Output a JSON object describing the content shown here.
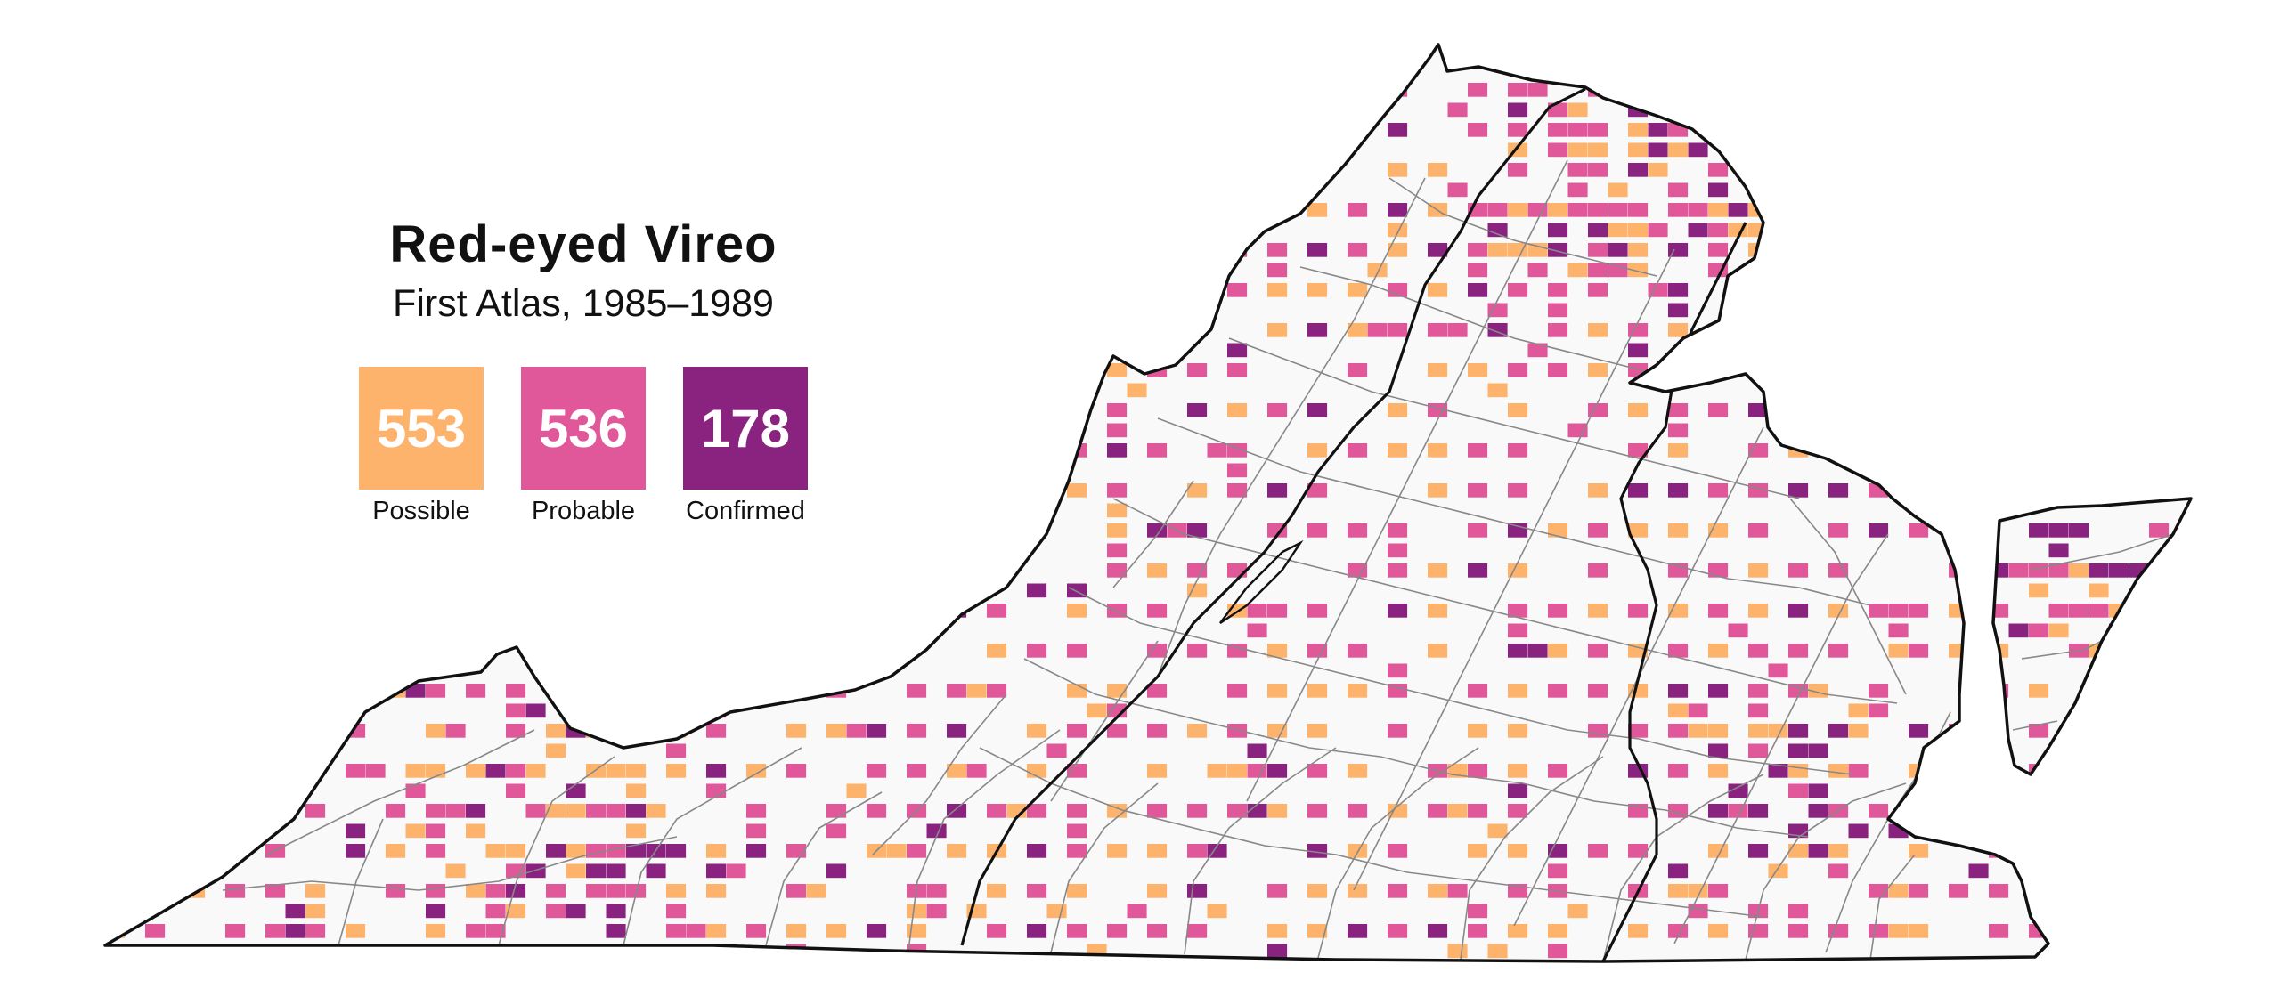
{
  "title": "Red-eyed  Vireo",
  "subtitle": "First Atlas, 1985–1989",
  "colors": {
    "possible": "#fdb36b",
    "probable": "#e0589a",
    "confirmed": "#8a227f",
    "state_fill": "#f9f9f9",
    "state_border": "#111111",
    "county_border": "#888888",
    "region_border": "#111111"
  },
  "legend": {
    "categories": [
      {
        "key": "possible",
        "label": "Possible",
        "count": "553"
      },
      {
        "key": "probable",
        "label": "Probable",
        "count": "536"
      },
      {
        "key": "confirmed",
        "label": "Confirmed",
        "count": "178"
      }
    ]
  }
}
